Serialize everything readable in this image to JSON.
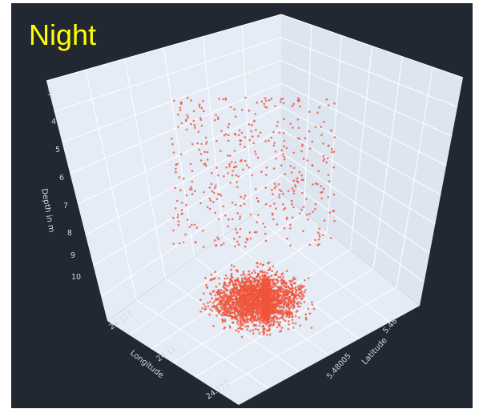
{
  "title": "Night",
  "chart_data": {
    "type": "scatter",
    "projection": "3d",
    "marker_color": "#ef553b",
    "background_color": "#222831",
    "scene_background": "#e5ecf6",
    "axes": {
      "z": {
        "label": "Depth in m",
        "reversed": true,
        "ticks": [
          "3",
          "4",
          "5",
          "6",
          "7",
          "8",
          "9",
          "10"
        ],
        "range": [
          3,
          10.8
        ]
      },
      "x": {
        "label": "Longitude",
        "ticks": [
          "24.111",
          "24.11",
          "24.112"
        ]
      },
      "y": {
        "label": "Latitude",
        "ticks": [
          "5.48",
          "5.48005"
        ]
      }
    },
    "distribution": {
      "approx_points": 3000,
      "depth_range_sparse": [
        3,
        7
      ],
      "depth_range_dense": [
        7.5,
        10.5
      ]
    }
  }
}
